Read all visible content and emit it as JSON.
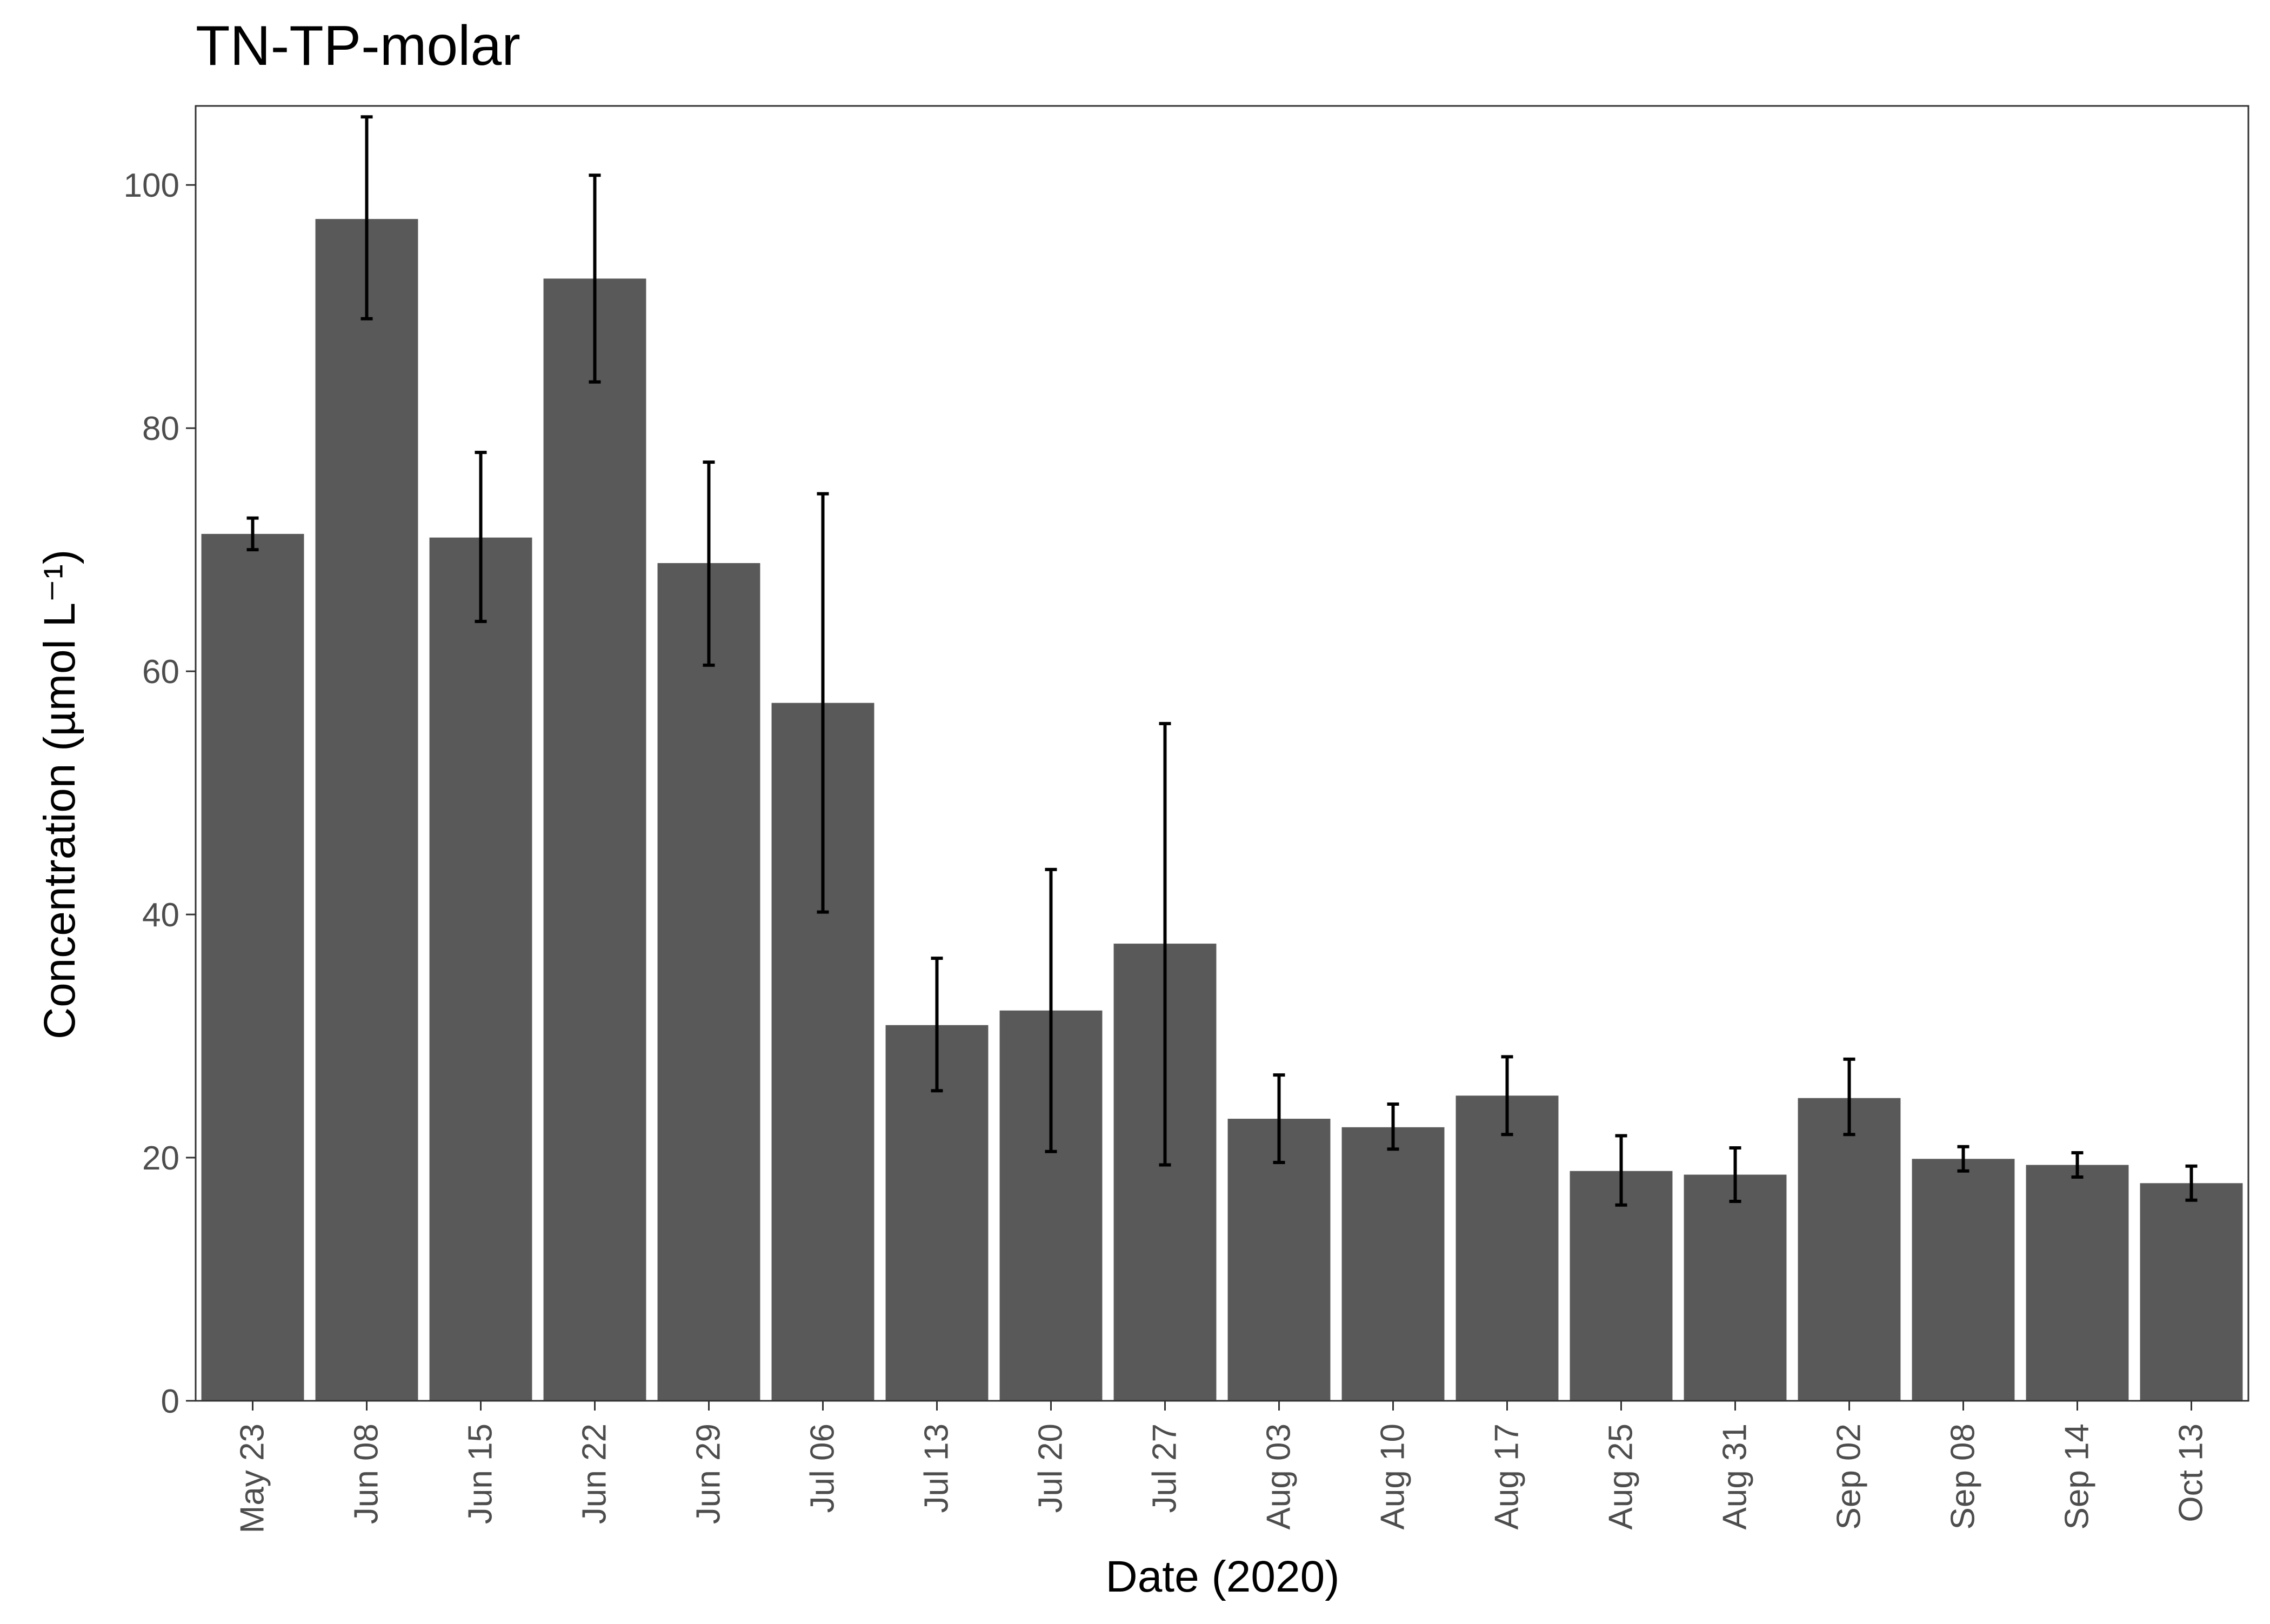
{
  "chart_data": {
    "type": "bar",
    "title": "TN-TP-molar",
    "xlabel": "Date (2020)",
    "ylabel": "Concentration (µmol L⁻¹)",
    "ylim": [
      0,
      106.5
    ],
    "yticks": [
      0,
      20,
      40,
      60,
      80,
      100
    ],
    "grid": false,
    "legend": "none",
    "bar_color": "#595959",
    "categories": [
      "May 23",
      "Jun 08",
      "Jun 15",
      "Jun 22",
      "Jun 29",
      "Jul 06",
      "Jul 13",
      "Jul 20",
      "Jul 27",
      "Aug 03",
      "Aug 10",
      "Aug 17",
      "Aug 25",
      "Aug 31",
      "Sep 02",
      "Sep 08",
      "Sep 14",
      "Oct 13"
    ],
    "values": [
      71.3,
      97.2,
      71.0,
      92.3,
      68.9,
      57.4,
      30.9,
      32.1,
      37.6,
      23.2,
      22.5,
      25.1,
      18.9,
      18.6,
      24.9,
      19.9,
      19.4,
      17.9
    ],
    "error_low": [
      70.0,
      89.0,
      64.1,
      83.8,
      60.5,
      40.2,
      25.5,
      20.5,
      19.4,
      19.6,
      20.7,
      21.9,
      16.1,
      16.4,
      21.9,
      18.9,
      18.4,
      16.5
    ],
    "error_high": [
      72.6,
      105.6,
      78.0,
      100.8,
      77.2,
      74.6,
      36.4,
      43.7,
      55.7,
      26.8,
      24.4,
      28.3,
      21.8,
      20.8,
      28.1,
      20.9,
      20.4,
      19.3
    ]
  }
}
